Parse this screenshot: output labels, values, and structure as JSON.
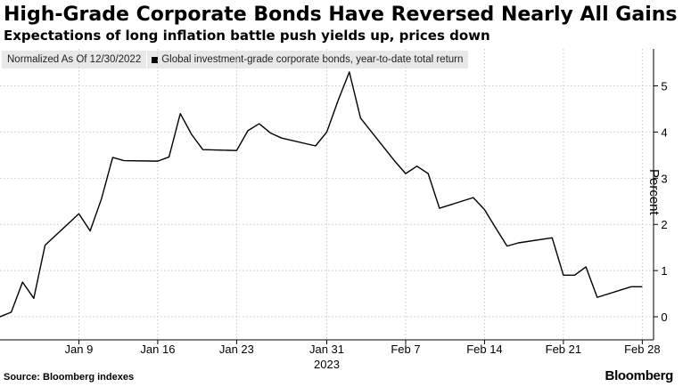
{
  "header": {
    "title": "High-Grade Corporate Bonds Have Reversed Nearly All Gains",
    "subtitle": "Expectations of long inflation battle push yields up, prices down"
  },
  "legend": {
    "note": "Normalized As Of 12/30/2022",
    "series_label": "Global investment-grade corporate bonds, year-to-date total return"
  },
  "footer": {
    "source": "Source: Bloomberg indexes",
    "brand": "Bloomberg"
  },
  "colors": {
    "line": "#000000",
    "grid": "#c8c8c8",
    "legend_bg": "#e8e8e8"
  },
  "chart_data": {
    "type": "line",
    "ylabel": "Percent",
    "ylim": [
      -0.5,
      5.8
    ],
    "yticks": [
      0,
      1,
      2,
      3,
      4,
      5
    ],
    "xlim": [
      "2023-01-02",
      "2023-03-01"
    ],
    "xticks": [
      {
        "date": "2023-01-09",
        "label": "Jan 9"
      },
      {
        "date": "2023-01-16",
        "label": "Jan 16"
      },
      {
        "date": "2023-01-23",
        "label": "Jan 23"
      },
      {
        "date": "2023-01-31",
        "label": "Jan 31",
        "sublabel": "2023"
      },
      {
        "date": "2023-02-07",
        "label": "Feb 7"
      },
      {
        "date": "2023-02-14",
        "label": "Feb 14"
      },
      {
        "date": "2023-02-21",
        "label": "Feb 21"
      },
      {
        "date": "2023-02-28",
        "label": "Feb 28"
      }
    ],
    "grid": true,
    "series": [
      {
        "name": "Global investment-grade corporate bonds, year-to-date total return",
        "points": [
          [
            "2023-01-02",
            0.0
          ],
          [
            "2023-01-03",
            0.1
          ],
          [
            "2023-01-04",
            0.75
          ],
          [
            "2023-01-05",
            0.4
          ],
          [
            "2023-01-06",
            1.55
          ],
          [
            "2023-01-09",
            2.23
          ],
          [
            "2023-01-10",
            1.86
          ],
          [
            "2023-01-11",
            2.55
          ],
          [
            "2023-01-12",
            3.45
          ],
          [
            "2023-01-13",
            3.38
          ],
          [
            "2023-01-16",
            3.37
          ],
          [
            "2023-01-17",
            3.46
          ],
          [
            "2023-01-18",
            4.4
          ],
          [
            "2023-01-19",
            3.95
          ],
          [
            "2023-01-20",
            3.62
          ],
          [
            "2023-01-23",
            3.6
          ],
          [
            "2023-01-24",
            4.03
          ],
          [
            "2023-01-25",
            4.18
          ],
          [
            "2023-01-26",
            3.98
          ],
          [
            "2023-01-27",
            3.87
          ],
          [
            "2023-01-30",
            3.7
          ],
          [
            "2023-01-31",
            4.0
          ],
          [
            "2023-02-01",
            4.68
          ],
          [
            "2023-02-02",
            5.3
          ],
          [
            "2023-02-03",
            4.3
          ],
          [
            "2023-02-06",
            3.38
          ],
          [
            "2023-02-07",
            3.1
          ],
          [
            "2023-02-08",
            3.26
          ],
          [
            "2023-02-09",
            3.1
          ],
          [
            "2023-02-10",
            2.35
          ],
          [
            "2023-02-13",
            2.58
          ],
          [
            "2023-02-14",
            2.32
          ],
          [
            "2023-02-15",
            1.92
          ],
          [
            "2023-02-16",
            1.53
          ],
          [
            "2023-02-17",
            1.6
          ],
          [
            "2023-02-20",
            1.71
          ],
          [
            "2023-02-21",
            0.9
          ],
          [
            "2023-02-22",
            0.9
          ],
          [
            "2023-02-23",
            1.08
          ],
          [
            "2023-02-24",
            0.42
          ],
          [
            "2023-02-27",
            0.65
          ],
          [
            "2023-02-28",
            0.65
          ]
        ]
      }
    ]
  }
}
